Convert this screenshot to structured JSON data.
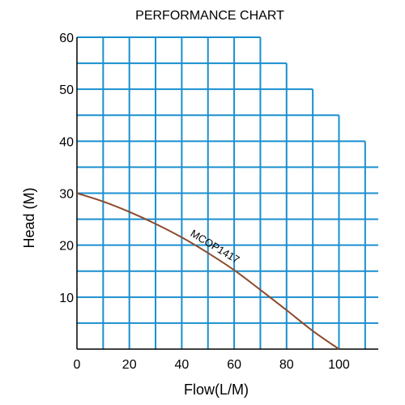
{
  "chart_data": {
    "type": "line",
    "title": "PERFORMANCE CHART",
    "xlabel": "Flow(L/M)",
    "ylabel": "Head (M)",
    "xlim": [
      0,
      115
    ],
    "ylim": [
      0,
      60
    ],
    "x_ticks": [
      0,
      20,
      40,
      60,
      80,
      100
    ],
    "y_ticks": [
      10,
      20,
      30,
      40,
      50,
      60
    ],
    "grid": true,
    "grid_color": "#1a8fd0",
    "grid_step": {
      "x": 10,
      "y": 5
    },
    "grid_envelope": [
      {
        "x_to": 70,
        "y_top": 60
      },
      {
        "x_to": 80,
        "y_top": 55
      },
      {
        "x_to": 90,
        "y_top": 50
      },
      {
        "x_to": 100,
        "y_top": 45
      },
      {
        "x_to": 110,
        "y_top": 40
      },
      {
        "x_to": 115,
        "y_top": 35
      }
    ],
    "series": [
      {
        "name": "MCOP1417",
        "color": "#8b4a2b",
        "x": [
          0,
          10,
          20,
          30,
          40,
          50,
          60,
          70,
          80,
          90,
          100
        ],
        "y": [
          30,
          28.4,
          26.4,
          24.1,
          21.5,
          18.5,
          15.2,
          11.4,
          7.5,
          3.5,
          0
        ]
      }
    ]
  }
}
